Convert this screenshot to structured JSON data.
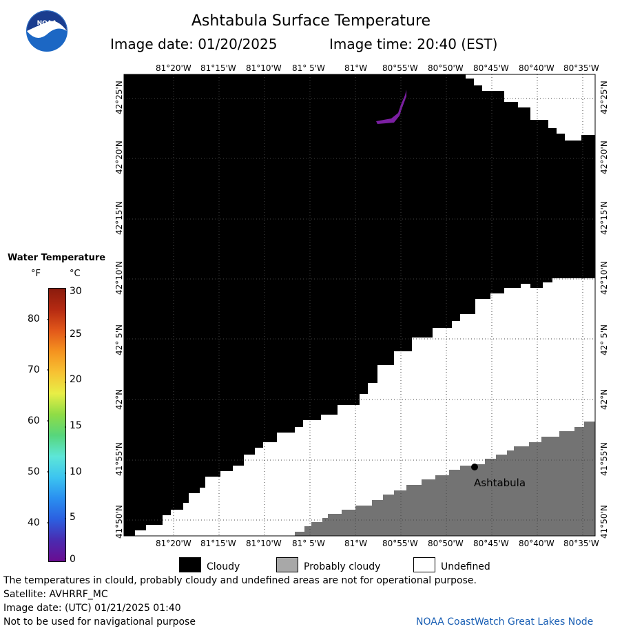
{
  "header": {
    "title": "Ashtabula Surface Temperature",
    "image_date_label": "Image date: 01/20/2025",
    "image_time_label": "Image time: 20:40 (EST)",
    "logo_text": "NOAA"
  },
  "map": {
    "lon_labels": [
      "81°20'W",
      "81°15'W",
      "81°10'W",
      "81° 5'W",
      "81°W",
      "80°55'W",
      "80°50'W",
      "80°45'W",
      "80°40'W",
      "80°35'W"
    ],
    "lat_labels": [
      "42°25'N",
      "42°20'N",
      "42°15'N",
      "42°10'N",
      "42° 5'N",
      "42°N",
      "41°55'N",
      "41°50'N"
    ],
    "city_label": "Ashtabula",
    "colors": {
      "cloudy": "#000000",
      "probably_cloudy": "#737373",
      "undefined": "#ffffff",
      "city_dot": "#000000",
      "water_patch": "#7b1fa2"
    }
  },
  "colorbar": {
    "title": "Water Temperature",
    "unit_f": "°F",
    "unit_c": "°C",
    "f_ticks": [
      "80",
      "70",
      "60",
      "50",
      "40"
    ],
    "c_ticks": [
      "30",
      "25",
      "20",
      "15",
      "10",
      "5",
      "0"
    ],
    "colors": [
      "#6a0d91",
      "#4a2bb0",
      "#2b5fe0",
      "#2a8ff0",
      "#3cc4f0",
      "#5de6d8",
      "#57d67c",
      "#8fdc46",
      "#e8ee46",
      "#f7c233",
      "#f5931f",
      "#e2581a",
      "#b52a12",
      "#8a1b0d"
    ]
  },
  "legend": {
    "items": [
      {
        "label": "Cloudy",
        "color": "#000000"
      },
      {
        "label": "Probably cloudy",
        "color": "#a8a8a8"
      },
      {
        "label": "Undefined",
        "color": "#ffffff"
      }
    ]
  },
  "footer": {
    "line1": "The temperatures in clould, probably cloudy and undefined areas are not for operational purpose.",
    "line2": "Satellite: AVHRRF_MC",
    "line3": "Image date: (UTC) 01/21/2025  01:40",
    "line4": "Not to be used for navigational purpose",
    "credit": "NOAA CoastWatch Great Lakes Node"
  }
}
